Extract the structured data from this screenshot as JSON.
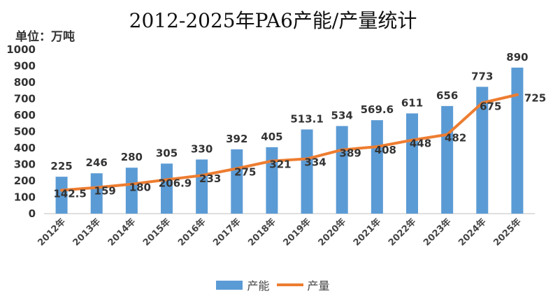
{
  "chart_data": {
    "type": "bar",
    "title": "2012-2025年PA6产能/产量统计",
    "unit_label": "单位：万吨",
    "categories": [
      "2012年",
      "2013年",
      "2014年",
      "2015年",
      "2016年",
      "2017年",
      "2018年",
      "2019年",
      "2020年",
      "2021年",
      "2022年",
      "2023年",
      "2024年",
      "2025年"
    ],
    "series": [
      {
        "name": "产能",
        "type": "bar",
        "color": "#5b9bd5",
        "values": [
          225,
          246,
          280,
          305,
          330,
          392,
          405,
          513.1,
          534,
          569.6,
          611,
          656,
          773,
          890
        ],
        "labels": [
          "225",
          "246",
          "280",
          "305",
          "330",
          "392",
          "405",
          "513.1",
          "534",
          "569.6",
          "611",
          "656",
          "773",
          "890"
        ]
      },
      {
        "name": "产量",
        "type": "line",
        "color": "#ed7d31",
        "values": [
          142.5,
          159,
          180,
          206.9,
          233,
          275,
          321,
          334,
          389,
          408,
          448,
          482,
          675,
          725
        ],
        "labels": [
          "142.5",
          "159",
          "180",
          "206.9",
          "233",
          "275",
          "321",
          "334",
          "389",
          "408",
          "448",
          "482",
          "675",
          "725"
        ]
      }
    ],
    "ylim": [
      0,
      1000
    ],
    "yticks": [
      "0",
      "100",
      "200",
      "300",
      "400",
      "500",
      "600",
      "700",
      "800",
      "900",
      "1000"
    ],
    "grid": false,
    "legend_position": "bottom"
  }
}
